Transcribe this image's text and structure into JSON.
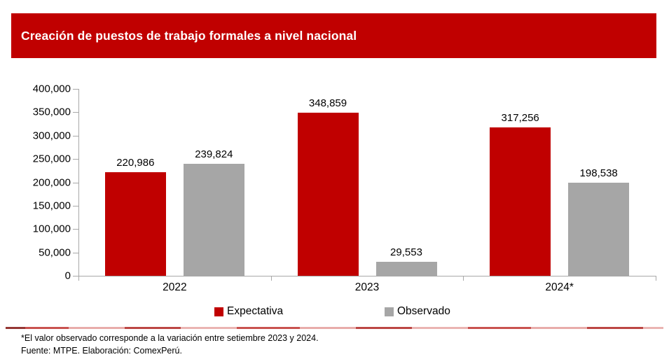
{
  "header": {
    "title": "Creación de puestos de trabajo formales a nivel nacional",
    "bg_color": "#C00000",
    "text_color": "#FFFFFF"
  },
  "chart_data": {
    "type": "bar",
    "title": "Creación de puestos de trabajo formales a nivel nacional",
    "categories": [
      "2022",
      "2023",
      "2024*"
    ],
    "series": [
      {
        "name": "Expectativa",
        "color": "#C00000",
        "values": [
          220986,
          348859,
          317256
        ],
        "labels": [
          "220,986",
          "348,859",
          "317,256"
        ]
      },
      {
        "name": "Observado",
        "color": "#A6A6A6",
        "values": [
          239824,
          29553,
          198538
        ],
        "labels": [
          "239,824",
          "29,553",
          "198,538"
        ]
      }
    ],
    "y_axis": {
      "min": 0,
      "max": 400000,
      "step": 50000,
      "tick_labels": [
        "400,000",
        "350,000",
        "300,000",
        "250,000",
        "200,000",
        "150,000",
        "100,000",
        "50,000",
        "0"
      ]
    },
    "xlabel": "",
    "ylabel": "",
    "grid": false,
    "legend": {
      "position": "bottom",
      "items": [
        {
          "label": "Expectativa",
          "color": "#C00000"
        },
        {
          "label": "Observado",
          "color": "#A6A6A6"
        }
      ]
    }
  },
  "footer": {
    "note": "*El valor observado corresponde a la variación entre setiembre 2023 y 2024.",
    "source": "Fuente: MTPE. Elaboración: ComexPerú."
  }
}
